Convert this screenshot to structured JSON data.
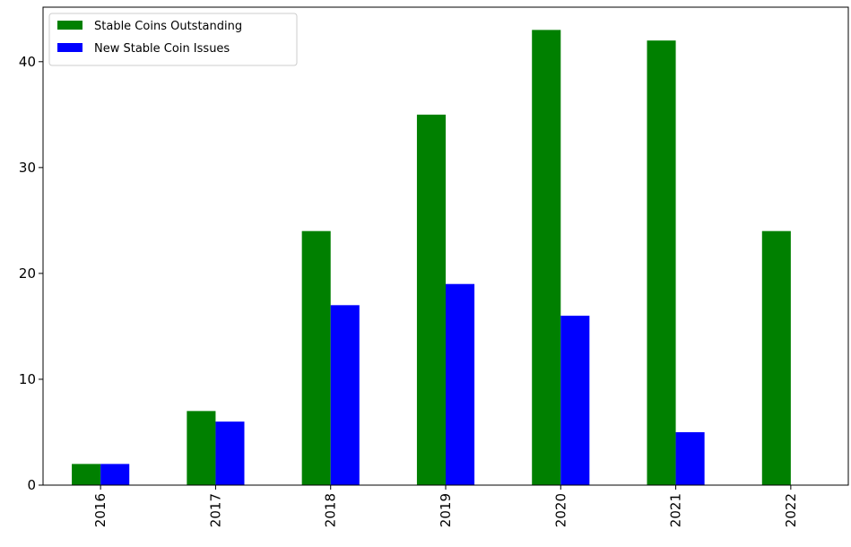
{
  "chart_data": {
    "type": "bar",
    "categories": [
      "2016",
      "2017",
      "2018",
      "2019",
      "2020",
      "2021",
      "2022"
    ],
    "series": [
      {
        "name": "Stable Coins Outstanding",
        "color": "#008000",
        "values": [
          2,
          7,
          24,
          35,
          43,
          42,
          24
        ]
      },
      {
        "name": "New Stable Coin Issues",
        "color": "#0000ff",
        "values": [
          2,
          6,
          17,
          19,
          16,
          5,
          null
        ]
      }
    ],
    "ylim": [
      0,
      45.15
    ],
    "yticks": [
      0,
      10,
      20,
      30,
      40
    ],
    "grid": false,
    "legend": "upper left"
  }
}
